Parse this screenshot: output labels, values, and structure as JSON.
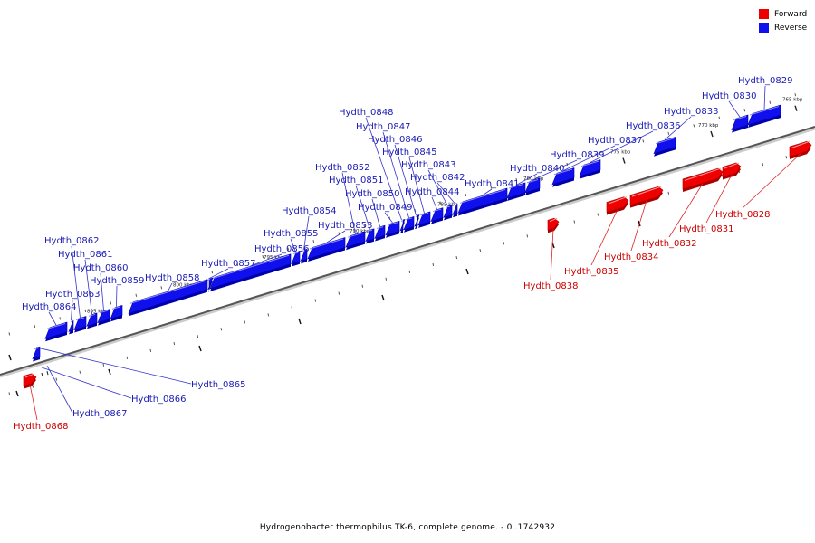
{
  "legend": {
    "items": [
      {
        "label": "Forward",
        "color": "#ee0000"
      },
      {
        "label": "Reverse",
        "color": "#1010ee"
      }
    ]
  },
  "caption": "Hydrogenobacter thermophilus TK-6, complete genome. - 0..1742932",
  "axis": {
    "ticks": [
      "805 kbp",
      "800 kbp",
      "795 kbp",
      "790 kbp",
      "785 kbp",
      "780 kbp",
      "775 kbp",
      "770 kbp",
      "765 kbp"
    ]
  },
  "genes": [
    {
      "label": "Hydth_0829",
      "strand": "reverse"
    },
    {
      "label": "Hydth_0830",
      "strand": "reverse"
    },
    {
      "label": "Hydth_0833",
      "strand": "reverse"
    },
    {
      "label": "Hydth_0836",
      "strand": "reverse"
    },
    {
      "label": "Hydth_0837",
      "strand": "reverse"
    },
    {
      "label": "Hydth_0839",
      "strand": "reverse"
    },
    {
      "label": "Hydth_0840",
      "strand": "reverse"
    },
    {
      "label": "Hydth_0841",
      "strand": "reverse"
    },
    {
      "label": "Hydth_0842",
      "strand": "reverse"
    },
    {
      "label": "Hydth_0843",
      "strand": "reverse"
    },
    {
      "label": "Hydth_0844",
      "strand": "reverse"
    },
    {
      "label": "Hydth_0845",
      "strand": "reverse"
    },
    {
      "label": "Hydth_0846",
      "strand": "reverse"
    },
    {
      "label": "Hydth_0847",
      "strand": "reverse"
    },
    {
      "label": "Hydth_0848",
      "strand": "reverse"
    },
    {
      "label": "Hydth_0849",
      "strand": "reverse"
    },
    {
      "label": "Hydth_0850",
      "strand": "reverse"
    },
    {
      "label": "Hydth_0851",
      "strand": "reverse"
    },
    {
      "label": "Hydth_0852",
      "strand": "reverse"
    },
    {
      "label": "Hydth_0853",
      "strand": "reverse"
    },
    {
      "label": "Hydth_0854",
      "strand": "reverse"
    },
    {
      "label": "Hydth_0855",
      "strand": "reverse"
    },
    {
      "label": "Hydth_0856",
      "strand": "reverse"
    },
    {
      "label": "Hydth_0857",
      "strand": "reverse"
    },
    {
      "label": "Hydth_0858",
      "strand": "reverse"
    },
    {
      "label": "Hydth_0859",
      "strand": "reverse"
    },
    {
      "label": "Hydth_0860",
      "strand": "reverse"
    },
    {
      "label": "Hydth_0861",
      "strand": "reverse"
    },
    {
      "label": "Hydth_0862",
      "strand": "reverse"
    },
    {
      "label": "Hydth_0863",
      "strand": "reverse"
    },
    {
      "label": "Hydth_0864",
      "strand": "reverse"
    },
    {
      "label": "Hydth_0865",
      "strand": "reverse"
    },
    {
      "label": "Hydth_0866",
      "strand": "reverse"
    },
    {
      "label": "Hydth_0867",
      "strand": "reverse"
    },
    {
      "label": "Hydth_0828",
      "strand": "forward"
    },
    {
      "label": "Hydth_0831",
      "strand": "forward"
    },
    {
      "label": "Hydth_0832",
      "strand": "forward"
    },
    {
      "label": "Hydth_0834",
      "strand": "forward"
    },
    {
      "label": "Hydth_0835",
      "strand": "forward"
    },
    {
      "label": "Hydth_0838",
      "strand": "forward"
    },
    {
      "label": "Hydth_0868",
      "strand": "forward"
    }
  ]
}
